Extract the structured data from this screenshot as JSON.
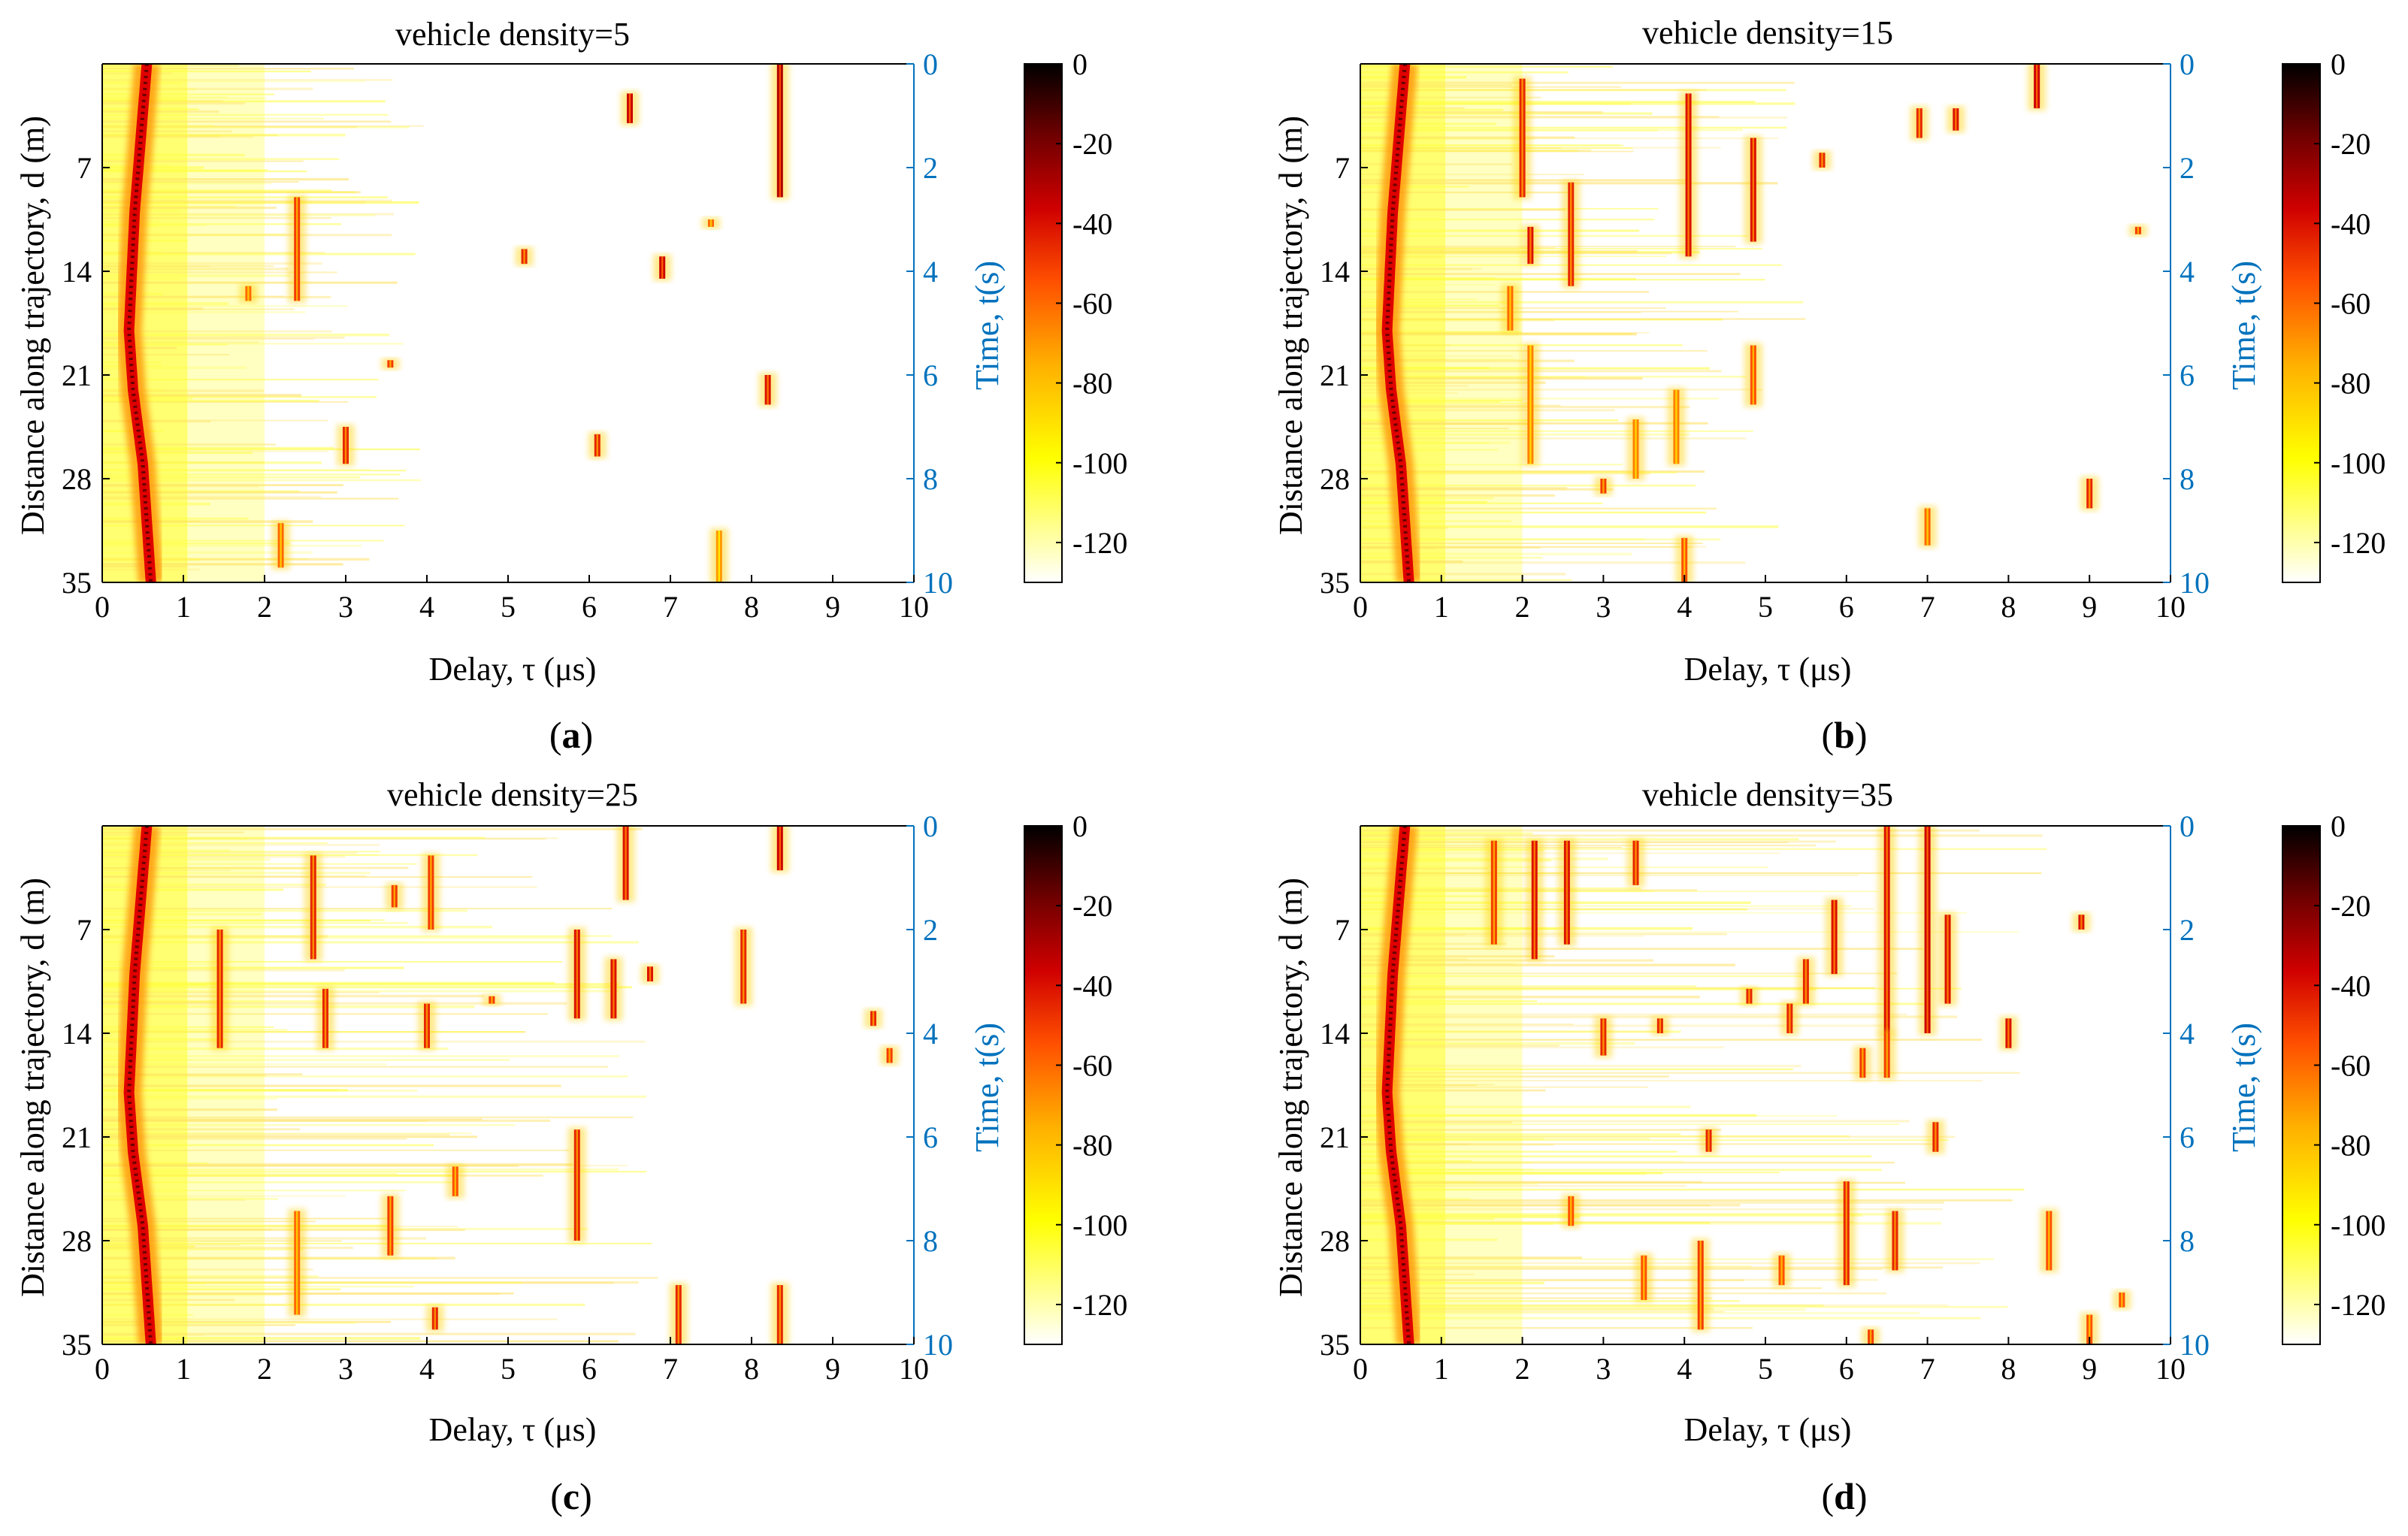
{
  "figure": {
    "colorbar": {
      "ticks": [
        0,
        -20,
        -40,
        -60,
        -80,
        -100,
        -120
      ],
      "range": [
        -130,
        0
      ],
      "colors": [
        "#ffffff",
        "#ffff80",
        "#ffff00",
        "#ffb000",
        "#ff5000",
        "#d00000",
        "#700000",
        "#000000"
      ]
    },
    "colors": {
      "axis": "#000000",
      "right_axis": "#0072bd",
      "base": "#ffffff"
    }
  },
  "chart_data": [
    {
      "type": "heatmap",
      "panel_label": "a",
      "title": "vehicle density=5",
      "xlabel": "Delay, τ (μs)",
      "ylabel": "Distance along trajectory, d (m)",
      "y2label": "Time, t(s)",
      "xlim": [
        0,
        10
      ],
      "ylim": [
        0,
        35
      ],
      "y2lim": [
        0,
        10
      ],
      "xticks": [
        0,
        1,
        2,
        3,
        4,
        5,
        6,
        7,
        8,
        9,
        10
      ],
      "yticks": [
        7,
        14,
        21,
        28,
        35
      ],
      "y2ticks": [
        0,
        2,
        4,
        6,
        8,
        10
      ],
      "clim": [
        -130,
        0
      ],
      "los_path_delay_us": [
        [
          0,
          0.55
        ],
        [
          10,
          0.4
        ],
        [
          18,
          0.33
        ],
        [
          22,
          0.38
        ],
        [
          27,
          0.5
        ],
        [
          35,
          0.6
        ]
      ],
      "scatter_clusters": [
        {
          "delay": 8.35,
          "d_range": [
            0,
            9
          ],
          "level": -30
        },
        {
          "delay": 6.5,
          "d_range": [
            2,
            4
          ],
          "level": -35
        },
        {
          "delay": 2.4,
          "d_range": [
            9,
            16
          ],
          "level": -50
        },
        {
          "delay": 5.2,
          "d_range": [
            12.5,
            13.5
          ],
          "level": -45
        },
        {
          "delay": 6.9,
          "d_range": [
            13,
            14.5
          ],
          "level": -35
        },
        {
          "delay": 7.5,
          "d_range": [
            10.5,
            11
          ],
          "level": -60
        },
        {
          "delay": 3.55,
          "d_range": [
            20,
            20.5
          ],
          "level": -50
        },
        {
          "delay": 8.2,
          "d_range": [
            21,
            23
          ],
          "level": -40
        },
        {
          "delay": 3.0,
          "d_range": [
            24.5,
            27
          ],
          "level": -45
        },
        {
          "delay": 6.1,
          "d_range": [
            25,
            26.5
          ],
          "level": -45
        },
        {
          "delay": 1.8,
          "d_range": [
            15,
            16
          ],
          "level": -60
        },
        {
          "delay": 2.2,
          "d_range": [
            31,
            34
          ],
          "level": -60
        },
        {
          "delay": 7.6,
          "d_range": [
            31.5,
            35
          ],
          "level": -70
        }
      ]
    },
    {
      "type": "heatmap",
      "panel_label": "b",
      "title": "vehicle density=15",
      "xlabel": "Delay, τ (μs)",
      "ylabel": "Distance along trajectory, d (m)",
      "y2label": "Time, t(s)",
      "xlim": [
        0,
        10
      ],
      "ylim": [
        0,
        35
      ],
      "y2lim": [
        0,
        10
      ],
      "xticks": [
        0,
        1,
        2,
        3,
        4,
        5,
        6,
        7,
        8,
        9,
        10
      ],
      "yticks": [
        7,
        14,
        21,
        28,
        35
      ],
      "y2ticks": [
        0,
        2,
        4,
        6,
        8,
        10
      ],
      "clim": [
        -130,
        0
      ],
      "los_path_delay_us": [
        [
          0,
          0.55
        ],
        [
          10,
          0.4
        ],
        [
          18,
          0.33
        ],
        [
          22,
          0.38
        ],
        [
          27,
          0.5
        ],
        [
          35,
          0.6
        ]
      ],
      "scatter_clusters": [
        {
          "delay": 8.35,
          "d_range": [
            0,
            3
          ],
          "level": -35
        },
        {
          "delay": 2.0,
          "d_range": [
            1,
            9
          ],
          "level": -45
        },
        {
          "delay": 4.05,
          "d_range": [
            2,
            13
          ],
          "level": -40
        },
        {
          "delay": 4.85,
          "d_range": [
            5,
            12
          ],
          "level": -40
        },
        {
          "delay": 6.9,
          "d_range": [
            3,
            5
          ],
          "level": -45
        },
        {
          "delay": 7.35,
          "d_range": [
            3,
            4.5
          ],
          "level": -40
        },
        {
          "delay": 2.6,
          "d_range": [
            8,
            15
          ],
          "level": -45
        },
        {
          "delay": 2.1,
          "d_range": [
            11,
            13.5
          ],
          "level": -40
        },
        {
          "delay": 5.7,
          "d_range": [
            6,
            7
          ],
          "level": -45
        },
        {
          "delay": 9.6,
          "d_range": [
            11,
            11.5
          ],
          "level": -50
        },
        {
          "delay": 1.85,
          "d_range": [
            15,
            18
          ],
          "level": -60
        },
        {
          "delay": 2.1,
          "d_range": [
            19,
            27
          ],
          "level": -65
        },
        {
          "delay": 3.4,
          "d_range": [
            24,
            28
          ],
          "level": -65
        },
        {
          "delay": 3.9,
          "d_range": [
            22,
            27
          ],
          "level": -65
        },
        {
          "delay": 4.85,
          "d_range": [
            19,
            23
          ],
          "level": -55
        },
        {
          "delay": 3.0,
          "d_range": [
            28,
            29
          ],
          "level": -50
        },
        {
          "delay": 7.0,
          "d_range": [
            30,
            32.5
          ],
          "level": -60
        },
        {
          "delay": 9.0,
          "d_range": [
            28,
            30
          ],
          "level": -45
        },
        {
          "delay": 4.0,
          "d_range": [
            32,
            35
          ],
          "level": -55
        }
      ]
    },
    {
      "type": "heatmap",
      "panel_label": "c",
      "title": "vehicle density=25",
      "xlabel": "Delay, τ (μs)",
      "ylabel": "Distance along trajectory, d (m)",
      "y2label": "Time, t(s)",
      "xlim": [
        0,
        10
      ],
      "ylim": [
        0,
        35
      ],
      "y2lim": [
        0,
        10
      ],
      "xticks": [
        0,
        1,
        2,
        3,
        4,
        5,
        6,
        7,
        8,
        9,
        10
      ],
      "yticks": [
        7,
        14,
        21,
        28,
        35
      ],
      "y2ticks": [
        0,
        2,
        4,
        6,
        8,
        10
      ],
      "clim": [
        -130,
        0
      ],
      "los_path_delay_us": [
        [
          0,
          0.55
        ],
        [
          10,
          0.4
        ],
        [
          18,
          0.33
        ],
        [
          22,
          0.38
        ],
        [
          27,
          0.5
        ],
        [
          35,
          0.6
        ]
      ],
      "scatter_clusters": [
        {
          "delay": 6.45,
          "d_range": [
            0,
            5
          ],
          "level": -40
        },
        {
          "delay": 8.35,
          "d_range": [
            0,
            3
          ],
          "level": -35
        },
        {
          "delay": 2.6,
          "d_range": [
            2,
            9
          ],
          "level": -45
        },
        {
          "delay": 4.05,
          "d_range": [
            2,
            7
          ],
          "level": -50
        },
        {
          "delay": 3.6,
          "d_range": [
            4,
            5.5
          ],
          "level": -50
        },
        {
          "delay": 1.45,
          "d_range": [
            7,
            15
          ],
          "level": -45
        },
        {
          "delay": 2.75,
          "d_range": [
            11,
            15
          ],
          "level": -45
        },
        {
          "delay": 5.85,
          "d_range": [
            7,
            13
          ],
          "level": -40
        },
        {
          "delay": 6.3,
          "d_range": [
            9,
            13
          ],
          "level": -40
        },
        {
          "delay": 7.9,
          "d_range": [
            7,
            12
          ],
          "level": -45
        },
        {
          "delay": 6.75,
          "d_range": [
            9.5,
            10.5
          ],
          "level": -40
        },
        {
          "delay": 4.0,
          "d_range": [
            12,
            15
          ],
          "level": -45
        },
        {
          "delay": 4.8,
          "d_range": [
            11.5,
            12
          ],
          "level": -50
        },
        {
          "delay": 9.5,
          "d_range": [
            12.5,
            13.5
          ],
          "level": -45
        },
        {
          "delay": 9.7,
          "d_range": [
            15,
            16
          ],
          "level": -50
        },
        {
          "delay": 5.85,
          "d_range": [
            20.5,
            28
          ],
          "level": -45
        },
        {
          "delay": 4.35,
          "d_range": [
            23,
            25
          ],
          "level": -55
        },
        {
          "delay": 3.55,
          "d_range": [
            25,
            29
          ],
          "level": -50
        },
        {
          "delay": 7.1,
          "d_range": [
            31,
            35
          ],
          "level": -45
        },
        {
          "delay": 8.35,
          "d_range": [
            31,
            35
          ],
          "level": -45
        },
        {
          "delay": 4.1,
          "d_range": [
            32.5,
            34
          ],
          "level": -45
        },
        {
          "delay": 2.4,
          "d_range": [
            26,
            33
          ],
          "level": -60
        }
      ]
    },
    {
      "type": "heatmap",
      "panel_label": "d",
      "title": "vehicle density=35",
      "xlabel": "Delay, τ (μs)",
      "ylabel": "Distance along trajectory, d (m)",
      "y2label": "Time, t(s)",
      "xlim": [
        0,
        10
      ],
      "ylim": [
        0,
        35
      ],
      "y2lim": [
        0,
        10
      ],
      "xticks": [
        0,
        1,
        2,
        3,
        4,
        5,
        6,
        7,
        8,
        9,
        10
      ],
      "yticks": [
        7,
        14,
        21,
        28,
        35
      ],
      "y2ticks": [
        0,
        2,
        4,
        6,
        8,
        10
      ],
      "clim": [
        -130,
        0
      ],
      "los_path_delay_us": [
        [
          0,
          0.55
        ],
        [
          10,
          0.4
        ],
        [
          18,
          0.33
        ],
        [
          22,
          0.38
        ],
        [
          27,
          0.5
        ],
        [
          35,
          0.6
        ]
      ],
      "scatter_clusters": [
        {
          "delay": 2.15,
          "d_range": [
            1,
            9
          ],
          "level": -40
        },
        {
          "delay": 2.55,
          "d_range": [
            1,
            8
          ],
          "level": -40
        },
        {
          "delay": 6.5,
          "d_range": [
            0,
            14
          ],
          "level": -40
        },
        {
          "delay": 7.0,
          "d_range": [
            0,
            14
          ],
          "level": -35
        },
        {
          "delay": 7.25,
          "d_range": [
            6,
            12
          ],
          "level": -40
        },
        {
          "delay": 5.85,
          "d_range": [
            5,
            10
          ],
          "level": -40
        },
        {
          "delay": 5.5,
          "d_range": [
            9,
            12
          ],
          "level": -45
        },
        {
          "delay": 1.65,
          "d_range": [
            1,
            8
          ],
          "level": -50
        },
        {
          "delay": 3.4,
          "d_range": [
            1,
            4
          ],
          "level": -45
        },
        {
          "delay": 8.9,
          "d_range": [
            6,
            7
          ],
          "level": -40
        },
        {
          "delay": 8.0,
          "d_range": [
            13,
            15
          ],
          "level": -40
        },
        {
          "delay": 3.0,
          "d_range": [
            13,
            15.5
          ],
          "level": -45
        },
        {
          "delay": 4.8,
          "d_range": [
            11,
            12
          ],
          "level": -45
        },
        {
          "delay": 5.3,
          "d_range": [
            12,
            14
          ],
          "level": -45
        },
        {
          "delay": 6.2,
          "d_range": [
            15,
            17
          ],
          "level": -50
        },
        {
          "delay": 3.7,
          "d_range": [
            13,
            14
          ],
          "level": -45
        },
        {
          "delay": 6.5,
          "d_range": [
            14,
            17
          ],
          "level": -50
        },
        {
          "delay": 4.3,
          "d_range": [
            20.5,
            22
          ],
          "level": -45
        },
        {
          "delay": 7.1,
          "d_range": [
            20,
            22
          ],
          "level": -45
        },
        {
          "delay": 6.0,
          "d_range": [
            24,
            31
          ],
          "level": -45
        },
        {
          "delay": 6.6,
          "d_range": [
            26,
            30
          ],
          "level": -45
        },
        {
          "delay": 8.5,
          "d_range": [
            26,
            30
          ],
          "level": -55
        },
        {
          "delay": 2.6,
          "d_range": [
            25,
            27
          ],
          "level": -55
        },
        {
          "delay": 3.5,
          "d_range": [
            29,
            32
          ],
          "level": -55
        },
        {
          "delay": 4.2,
          "d_range": [
            28,
            34
          ],
          "level": -50
        },
        {
          "delay": 5.2,
          "d_range": [
            29,
            31
          ],
          "level": -55
        },
        {
          "delay": 6.3,
          "d_range": [
            34,
            35
          ],
          "level": -50
        },
        {
          "delay": 9.0,
          "d_range": [
            33,
            35
          ],
          "level": -55
        },
        {
          "delay": 9.4,
          "d_range": [
            31.5,
            32.5
          ],
          "level": -55
        }
      ]
    }
  ]
}
